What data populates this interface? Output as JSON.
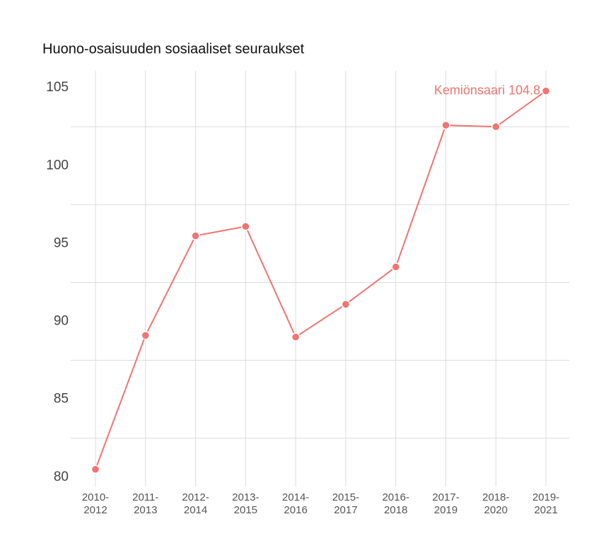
{
  "chart_data": {
    "type": "line",
    "title": "Huono-osaisuuden sosiaaliset seuraukset",
    "categories": [
      "2010-\n2012",
      "2011-\n2013",
      "2012-\n2014",
      "2013-\n2015",
      "2014-\n2016",
      "2015-\n2017",
      "2016-\n2018",
      "2017-\n2019",
      "2018-\n2020",
      "2019-\n2021"
    ],
    "series": [
      {
        "name": "Kemiönsaari",
        "color": "#f07470",
        "values": [
          80.5,
          89.1,
          95.5,
          96.1,
          89.0,
          91.1,
          93.5,
          102.6,
          102.5,
          104.8
        ]
      }
    ],
    "ylim": [
      79.4,
      106.1
    ],
    "yticks": [
      80,
      85,
      90,
      95,
      100,
      105
    ],
    "yminor_ticks": [
      82.5,
      87.5,
      92.5,
      97.5,
      102.5
    ],
    "grid": true
  }
}
